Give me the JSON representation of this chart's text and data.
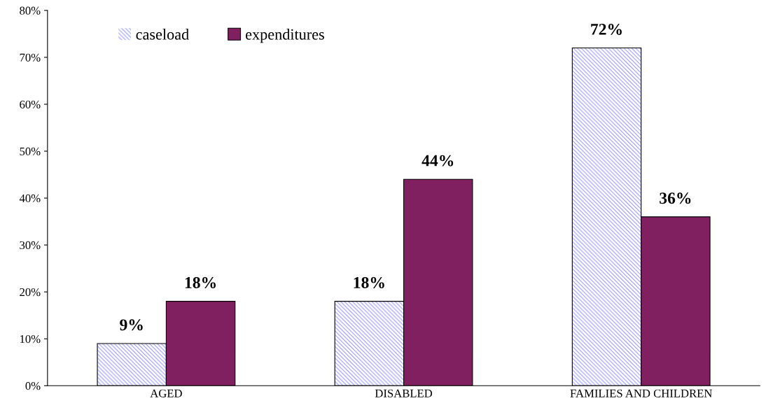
{
  "chart_data": {
    "type": "bar",
    "categories": [
      "AGED",
      "DISABLED",
      "FAMILIES AND CHILDREN"
    ],
    "series": [
      {
        "name": "caseload",
        "color": "#9999ff",
        "values": [
          9,
          18,
          72
        ],
        "value_labels": [
          "9%",
          "18%",
          "72%"
        ]
      },
      {
        "name": "expenditures",
        "color": "#802060",
        "values": [
          18,
          44,
          36
        ],
        "value_labels": [
          "18%",
          "44%",
          "36%"
        ]
      }
    ],
    "ylim": [
      0,
      80
    ],
    "yticks": [
      {
        "value": 0,
        "label": "0%"
      },
      {
        "value": 10,
        "label": "10%"
      },
      {
        "value": 20,
        "label": "20%"
      },
      {
        "value": 30,
        "label": "30%"
      },
      {
        "value": 40,
        "label": "40%"
      },
      {
        "value": 50,
        "label": "50%"
      },
      {
        "value": 60,
        "label": "60%"
      },
      {
        "value": 70,
        "label": "70%"
      },
      {
        "value": 80,
        "label": "80%"
      }
    ],
    "grid": false,
    "legend": "top left"
  }
}
